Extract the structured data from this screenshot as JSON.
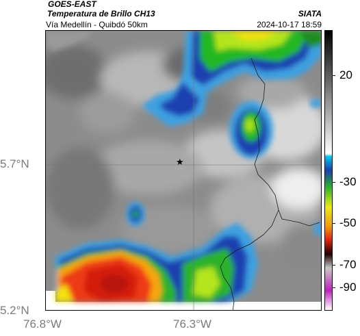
{
  "header": {
    "satellite": "GOES-EAST",
    "product": "Temperatura de Brillo CH13",
    "route": "Vía Medellín - Quibdó 50km",
    "org": "SIATA",
    "datetime": "2024-10-17 18:59"
  },
  "axes": {
    "lat_labels": [
      "5.7°N",
      "5.2°N"
    ],
    "lon_labels": [
      "76.8°W",
      "76.3°W"
    ]
  },
  "colorbar": {
    "labels": [
      "20",
      "-30",
      "-50",
      "-70",
      "-90"
    ]
  },
  "marker": {
    "symbol": "★"
  }
}
